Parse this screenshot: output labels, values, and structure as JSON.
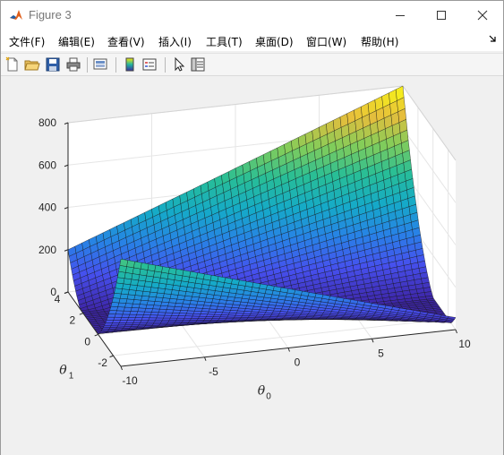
{
  "window": {
    "title": "Figure 3",
    "controls": {
      "minimize": "minimize-icon",
      "maximize": "maximize-icon",
      "close": "close-icon"
    }
  },
  "menu": {
    "items": [
      {
        "label": "文件(F)"
      },
      {
        "label": "编辑(E)"
      },
      {
        "label": "查看(V)"
      },
      {
        "label": "插入(I)"
      },
      {
        "label": "工具(T)"
      },
      {
        "label": "桌面(D)"
      },
      {
        "label": "窗口(W)"
      },
      {
        "label": "帮助(H)"
      }
    ],
    "overflow_icon": "dock-arrow-icon"
  },
  "toolbar": {
    "buttons": [
      "new-figure-icon",
      "open-file-icon",
      "save-icon",
      "print-icon",
      "link-plot-icon",
      "insert-colorbar-icon",
      "insert-legend-icon",
      "edit-plot-icon",
      "property-inspector-icon"
    ]
  },
  "chart_data": {
    "type": "surface",
    "colormap": "parula",
    "grid": true,
    "x_axis": {
      "label": "θ",
      "label_subscript": "0",
      "ticks": [
        "-10",
        "-5",
        "0",
        "5",
        "10"
      ],
      "range": [
        -10,
        10
      ]
    },
    "y_axis": {
      "label": "θ",
      "label_subscript": "1",
      "ticks": [
        "-2",
        "0",
        "2",
        "4"
      ],
      "range": [
        -3,
        4
      ]
    },
    "z_axis": {
      "ticks": [
        "0",
        "200",
        "400",
        "600",
        "800"
      ],
      "range": [
        0,
        800
      ]
    },
    "surface_corners": {
      "x10_y4": 800,
      "x-10_y4": 200,
      "min_near": [
        0,
        0
      ]
    },
    "grid_resolution": 100
  }
}
